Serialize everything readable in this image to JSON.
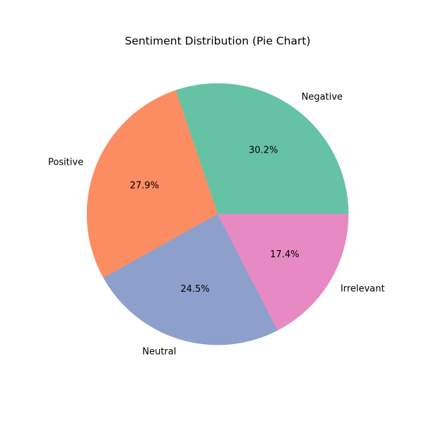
{
  "chart_data": {
    "type": "pie",
    "title": "Sentiment Distribution (Pie Chart)",
    "start_angle_deg": 0,
    "direction": "counterclockwise",
    "slices": [
      {
        "label": "Negative",
        "value": 30.2,
        "pct_label": "30.2%",
        "color": "#66c2a5"
      },
      {
        "label": "Positive",
        "value": 27.9,
        "pct_label": "27.9%",
        "color": "#fc8d62"
      },
      {
        "label": "Neutral",
        "value": 24.5,
        "pct_label": "24.5%",
        "color": "#8da0cb"
      },
      {
        "label": "Irrelevant",
        "value": 17.4,
        "pct_label": "17.4%",
        "color": "#e78ac3"
      }
    ]
  }
}
